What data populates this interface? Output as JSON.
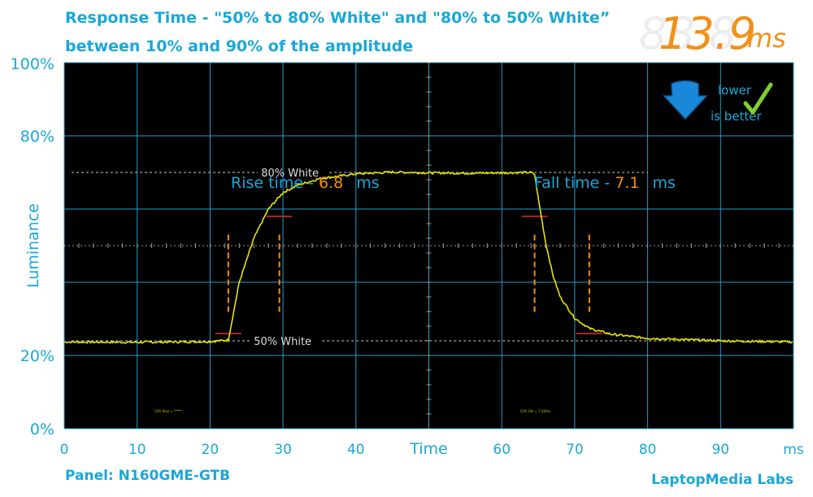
{
  "title_line1": "Response Time - \"50% to 80% White\" and \"80% to 50% White”",
  "title_line2": "between 10% and 90% of the amplitude",
  "total": {
    "value": "13.9",
    "unit": "ms"
  },
  "badge": {
    "line1": "lower",
    "line2": "is better"
  },
  "panel_label": "Panel: N160GME-GTB",
  "credit": "LaptopMedia Labs",
  "colors": {
    "accent": "#1aa7d8",
    "highlight": "#f39017",
    "trace": "#e6e600",
    "background": "#000000"
  },
  "chart_data": {
    "type": "line",
    "xlabel": "Time",
    "ylabel": "Luminance",
    "xlim": [
      0,
      100
    ],
    "ylim": [
      0,
      100
    ],
    "x_ticks": [
      "0",
      "10",
      "20",
      "30",
      "40",
      "Time",
      "60",
      "70",
      "80",
      "90",
      "ms"
    ],
    "y_ticks": [
      "100%",
      "80%",
      "",
      "",
      "20%",
      "0%"
    ],
    "grid": true,
    "reference_lines": [
      {
        "label": "80% White",
        "y": 70
      },
      {
        "label": "50% White",
        "y": 24
      }
    ],
    "annotations": [
      {
        "label": "Rise time - ",
        "value": "6.8",
        "unit": "ms"
      },
      {
        "label": "Fall time - ",
        "value": "7.1",
        "unit": "ms"
      }
    ],
    "markers": {
      "rise_start": 22.5,
      "rise_end": 29.5,
      "fall_start": 64.5,
      "fall_end": 72
    },
    "channel_labels": [
      "CH1 Rise = *****",
      "CH1 Fall = 7.30ms"
    ],
    "series": [
      {
        "x": [
          0,
          10,
          20,
          22.5,
          24,
          26,
          28,
          30,
          32,
          35,
          40,
          45,
          50,
          55,
          60,
          64,
          64.5,
          65,
          66,
          67,
          68,
          70,
          72,
          75,
          80,
          90,
          100
        ],
        "y": [
          23.7,
          23.6,
          23.8,
          24.2,
          40,
          52,
          60,
          64.5,
          66.5,
          68.3,
          69.6,
          70.1,
          69.9,
          69.8,
          69.9,
          70,
          69.5,
          63,
          51,
          42,
          36,
          30.2,
          27.4,
          25.8,
          24.7,
          24,
          23.7
        ]
      }
    ]
  }
}
